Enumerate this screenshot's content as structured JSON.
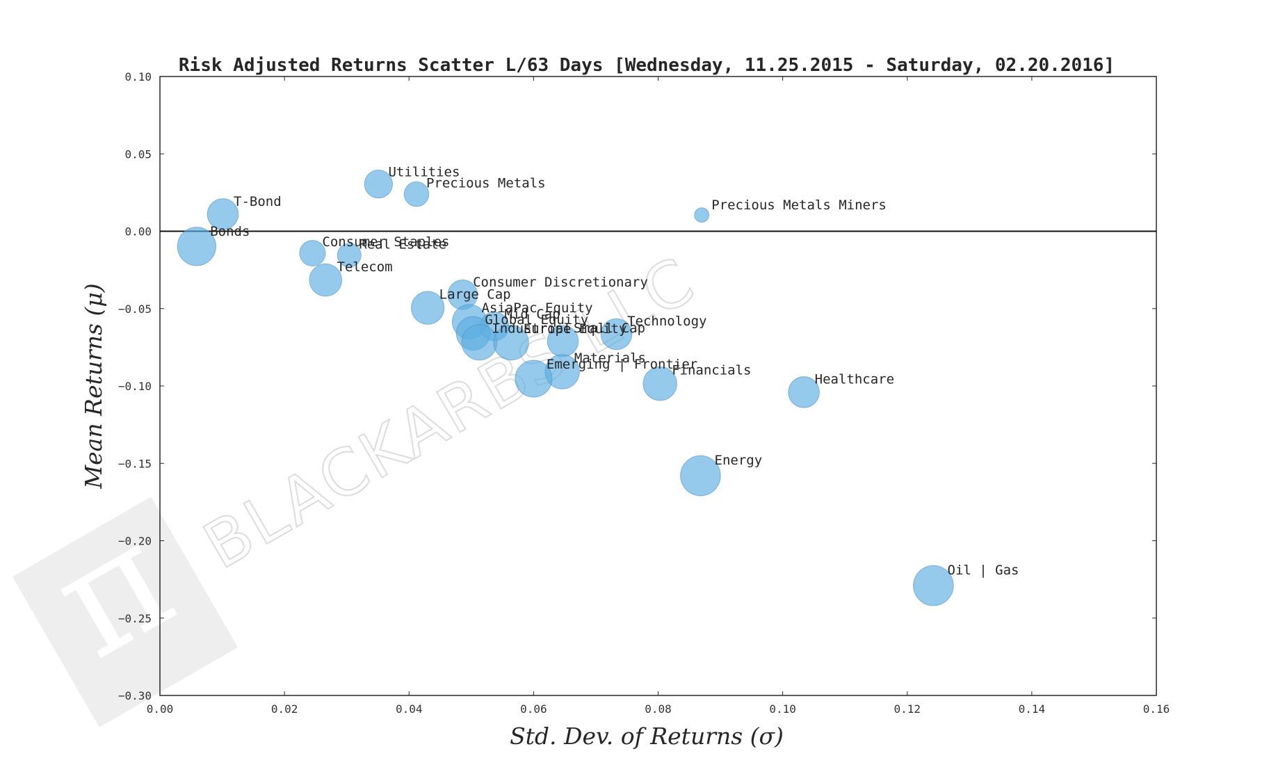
{
  "chart_data": {
    "type": "scatter",
    "title": "Risk Adjusted Returns Scatter L/63 Days [Wednesday, 11.25.2015 - Saturday, 02.20.2016]",
    "xlabel": "Std. Dev. of Returns (σ)",
    "ylabel": "Mean Returns (μ)",
    "xlim": [
      0.0,
      0.16
    ],
    "ylim": [
      -0.3,
      0.1
    ],
    "xticks": [
      "0.00",
      "0.02",
      "0.04",
      "0.06",
      "0.08",
      "0.10",
      "0.12",
      "0.14",
      "0.16"
    ],
    "yticks": [
      "0.10",
      "0.05",
      "0.00",
      "−0.05",
      "−0.10",
      "−0.15",
      "−0.20",
      "−0.25",
      "−0.30"
    ],
    "zero_line": 0.0,
    "color": "#5dade2",
    "watermark": "BLACKARBS LLC",
    "points": [
      {
        "label": "T-Bond",
        "x": 0.0101,
        "y": 0.011,
        "size": 0.55
      },
      {
        "label": "Bonds",
        "x": 0.0059,
        "y": -0.0098,
        "size": 0.85
      },
      {
        "label": "Utilities",
        "x": 0.0351,
        "y": 0.0305,
        "size": 0.45
      },
      {
        "label": "Precious Metals",
        "x": 0.0412,
        "y": 0.024,
        "size": 0.35
      },
      {
        "label": "Precious Metals Miners",
        "x": 0.087,
        "y": 0.0105,
        "size": 0.12
      },
      {
        "label": "Consumer Staples",
        "x": 0.0245,
        "y": -0.0142,
        "size": 0.38
      },
      {
        "label": "Real Estate",
        "x": 0.0304,
        "y": -0.0155,
        "size": 0.32
      },
      {
        "label": "Telecom",
        "x": 0.0266,
        "y": -0.0315,
        "size": 0.6
      },
      {
        "label": "Consumer Discretionary",
        "x": 0.0486,
        "y": -0.041,
        "size": 0.5
      },
      {
        "label": "Large Cap",
        "x": 0.043,
        "y": -0.0495,
        "size": 0.62
      },
      {
        "label": "AsiaPac Equity",
        "x": 0.0497,
        "y": -0.0585,
        "size": 0.68
      },
      {
        "label": "Mid Cap",
        "x": 0.0537,
        "y": -0.0615,
        "size": 0.48
      },
      {
        "label": "Global Equity",
        "x": 0.0503,
        "y": -0.066,
        "size": 0.65
      },
      {
        "label": "Industrial",
        "x": 0.0513,
        "y": -0.0718,
        "size": 0.72
      },
      {
        "label": "Europe Equity",
        "x": 0.0564,
        "y": -0.072,
        "size": 0.7
      },
      {
        "label": "Small Cap",
        "x": 0.0647,
        "y": -0.071,
        "size": 0.55
      },
      {
        "label": "Technology",
        "x": 0.0733,
        "y": -0.0665,
        "size": 0.55
      },
      {
        "label": "Materials",
        "x": 0.0646,
        "y": -0.0908,
        "size": 0.68
      },
      {
        "label": "Emerging | Frontier",
        "x": 0.06,
        "y": -0.0953,
        "size": 0.78
      },
      {
        "label": "Financials",
        "x": 0.0803,
        "y": -0.0985,
        "size": 0.65
      },
      {
        "label": "Healthcare",
        "x": 0.1034,
        "y": -0.104,
        "size": 0.55
      },
      {
        "label": "Energy",
        "x": 0.0868,
        "y": -0.158,
        "size": 0.92
      },
      {
        "label": "Oil | Gas",
        "x": 0.1242,
        "y": -0.229,
        "size": 0.92
      }
    ]
  }
}
